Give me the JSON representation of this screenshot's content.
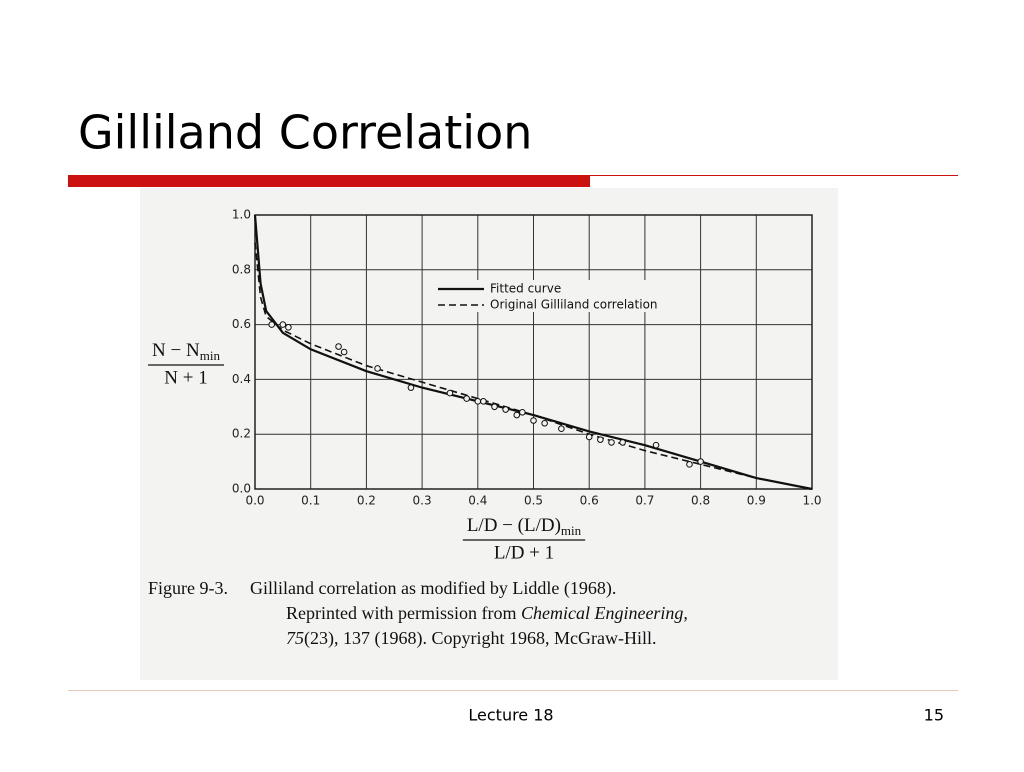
{
  "title": "Gilliland Correlation",
  "footer": {
    "center": "Lecture 18",
    "page": "15"
  },
  "chart_data": {
    "type": "line",
    "ylabel": {
      "numerator": "N − N",
      "numerator_sub": "min",
      "denominator": "N + 1"
    },
    "xlabel": {
      "numerator": "L/D − (L/D)",
      "numerator_sub": "min",
      "denominator": "L/D + 1"
    },
    "caption": {
      "label": "Figure 9-3.",
      "line1": "Gilliland correlation as modified by Liddle (1968).",
      "line2_a": "Reprinted with permission from ",
      "line2_italic": "Chemical Engineering,",
      "line3_italic": "75",
      "line3": "(23), 137 (1968). Copyright 1968, McGraw-Hill."
    },
    "x": [
      0,
      0.01,
      0.02,
      0.05,
      0.1,
      0.2,
      0.3,
      0.4,
      0.5,
      0.6,
      0.7,
      0.8,
      0.9,
      1.0
    ],
    "series": [
      {
        "name": "Fitted curve",
        "color": "#111111",
        "dash": false,
        "values": [
          1.0,
          0.75,
          0.65,
          0.57,
          0.51,
          0.43,
          0.37,
          0.32,
          0.27,
          0.21,
          0.16,
          0.1,
          0.04,
          0.0
        ]
      },
      {
        "name": "Original Gilliland correlation",
        "color": "#111111",
        "dash": true,
        "values": [
          0.9,
          0.7,
          0.63,
          0.58,
          0.53,
          0.45,
          0.39,
          0.33,
          0.27,
          0.2,
          0.14,
          0.09,
          0.04,
          0.0
        ]
      }
    ],
    "scatter": {
      "x": [
        0.03,
        0.05,
        0.06,
        0.15,
        0.16,
        0.22,
        0.28,
        0.35,
        0.38,
        0.4,
        0.41,
        0.43,
        0.45,
        0.47,
        0.48,
        0.5,
        0.52,
        0.55,
        0.6,
        0.62,
        0.64,
        0.66,
        0.72,
        0.78,
        0.8
      ],
      "y": [
        0.6,
        0.6,
        0.59,
        0.52,
        0.5,
        0.44,
        0.37,
        0.35,
        0.33,
        0.32,
        0.32,
        0.3,
        0.29,
        0.27,
        0.28,
        0.25,
        0.24,
        0.22,
        0.19,
        0.18,
        0.17,
        0.17,
        0.16,
        0.09,
        0.1
      ]
    },
    "xlim": [
      0,
      1
    ],
    "ylim": [
      0,
      1
    ],
    "xticks": [
      {
        "value": 0,
        "label": "0.0"
      },
      0.1,
      0.2,
      0.3,
      0.4,
      0.5,
      0.6,
      0.7,
      0.8,
      0.9,
      {
        "value": 1,
        "label": "1.0"
      }
    ],
    "yticks": [
      {
        "value": 0,
        "label": "0.0"
      },
      0.2,
      0.4,
      0.6,
      0.8,
      {
        "value": 1,
        "label": "1.0"
      }
    ],
    "grid": true,
    "legend": "upper right"
  }
}
